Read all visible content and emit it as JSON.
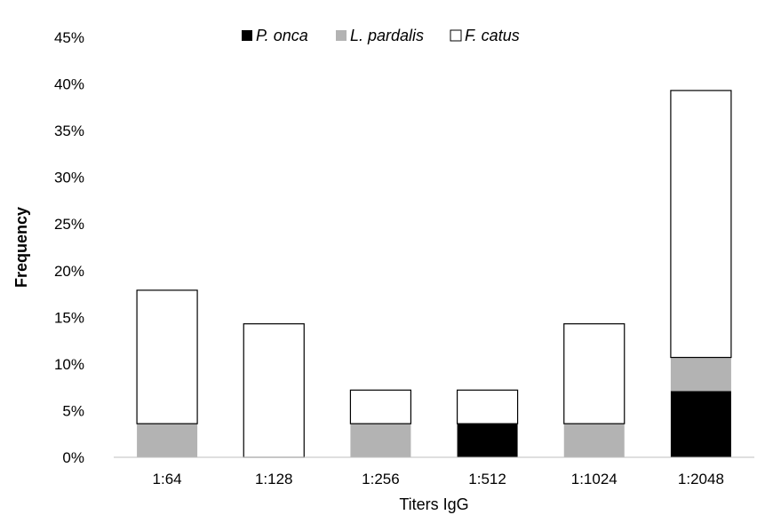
{
  "chart_data": {
    "type": "bar",
    "stacked": true,
    "categories": [
      "1:64",
      "1:128",
      "1:256",
      "1:512",
      "1:1024",
      "1:2048"
    ],
    "series": [
      {
        "name": "P. onca",
        "color": "#000000",
        "values": [
          0,
          0,
          0,
          3.6,
          0,
          7.1
        ]
      },
      {
        "name": "L. pardalis",
        "color": "#b3b3b3",
        "values": [
          3.6,
          0,
          3.6,
          0,
          3.6,
          3.6
        ]
      },
      {
        "name": "F. catus",
        "color": "#ffffff",
        "values": [
          14.3,
          14.3,
          3.6,
          3.6,
          10.7,
          28.6
        ]
      }
    ],
    "xlabel": "Titers IgG",
    "ylabel": "Frequency",
    "ylim": [
      0,
      45
    ],
    "yticks": [
      "0%",
      "5%",
      "10%",
      "15%",
      "20%",
      "25%",
      "30%",
      "35%",
      "40%",
      "45%"
    ],
    "grid": false,
    "legend_position": "top-center"
  }
}
